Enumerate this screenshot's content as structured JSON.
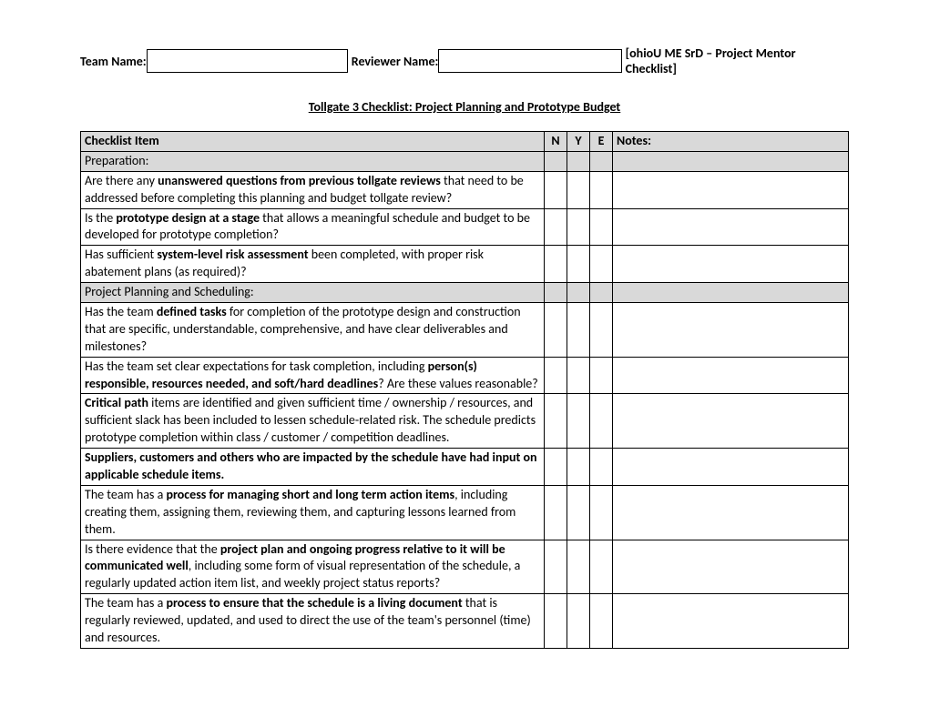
{
  "header": {
    "team_label": "Team Name:",
    "reviewer_label": "Reviewer Name:",
    "doc_ref": "[ohioU ME SrD – Project Mentor Checklist]"
  },
  "title": "Tollgate 3 Checklist: Project Planning and Prototype Budget",
  "columns": {
    "item": "Checklist Item",
    "n": "N",
    "y": "Y",
    "e": "E",
    "notes": "Notes:"
  },
  "sections": {
    "preparation": "Preparation:",
    "planning": "Project Planning and Scheduling:"
  },
  "rows": {
    "r1a": "Are there any ",
    "r1b": "unanswered questions from previous tollgate reviews",
    "r1c": " that need to be addressed before completing this planning and budget tollgate review?",
    "r2a": "Is the ",
    "r2b": "prototype design at a stage",
    "r2c": " that allows a meaningful schedule and budget to be developed for prototype completion?",
    "r3a": "Has sufficient ",
    "r3b": "system-level risk assessment",
    "r3c": " been completed, with proper risk abatement plans (as required)?",
    "r4a": "Has the team ",
    "r4b": "defined tasks",
    "r4c": " for completion of the prototype design and construction that are specific, understandable, comprehensive, and have clear deliverables and milestones?",
    "r5a": "Has the team set clear expectations for task completion, including ",
    "r5b": "person(s) responsible, resources needed, and soft/hard deadlines",
    "r5c": "?  Are these values reasonable?",
    "r6a": "Critical path",
    "r6b": " items are identified and given sufficient time / ownership / resources, and sufficient slack has been included to lessen schedule-related risk.  The schedule predicts prototype completion within class / customer / competition deadlines.",
    "r7": "Suppliers, customers and others who are impacted by the schedule have had input on applicable schedule items.",
    "r8a": "The team has a ",
    "r8b": "process for managing short and long term action items",
    "r8c": ", including creating them, assigning them, reviewing them, and capturing lessons learned from them.",
    "r9a": "Is there evidence that the ",
    "r9b": "project plan and ongoing progress relative to it will be communicated well",
    "r9c": ", including some form of visual representation of the schedule, a regularly updated action item list, and weekly project status reports?",
    "r10a": "The team has a ",
    "r10b": "process to ensure that the schedule is a living document",
    "r10c": " that is regularly reviewed, updated, and used to direct the use of the team's personnel (time) and resources."
  },
  "styling": {
    "section_bg": "#d9d9d9",
    "border_color": "#000000",
    "font_family": "Calibri",
    "font_size_pt": 11
  }
}
